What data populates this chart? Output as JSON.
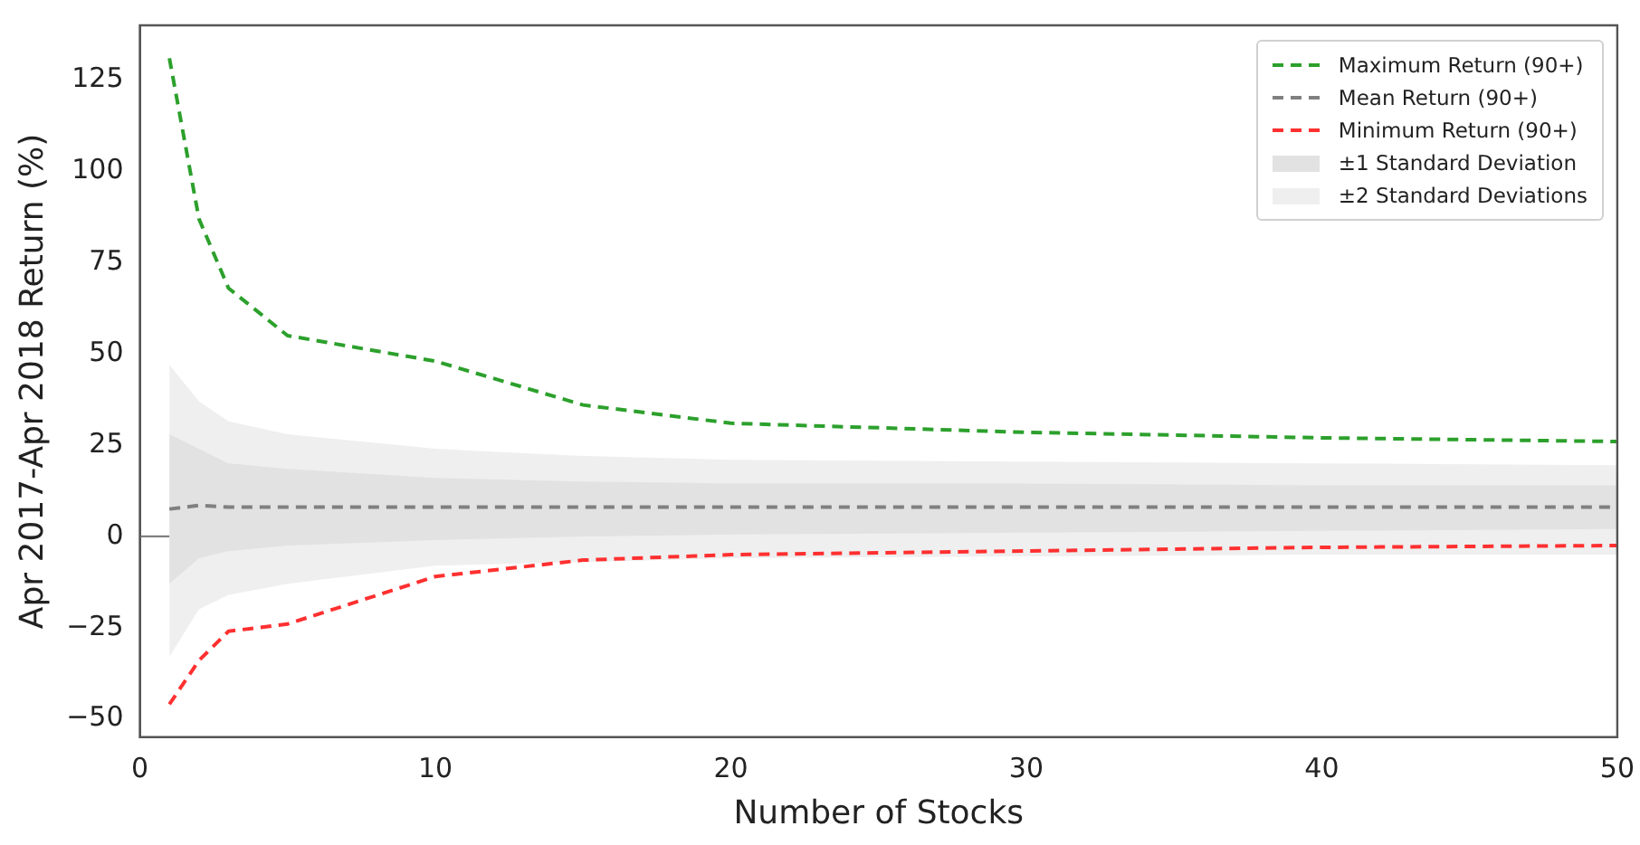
{
  "chart_data": {
    "type": "line",
    "xlabel": "Number of Stocks",
    "ylabel": "Apr 2017-Apr 2018 Return (%)",
    "x": [
      1,
      2,
      3,
      5,
      10,
      15,
      20,
      30,
      40,
      50
    ],
    "series": [
      {
        "name": "Maximum Return (90+)",
        "color": "#2ca02c",
        "values": [
          131,
          87,
          68,
          55,
          48,
          36,
          31,
          28.5,
          27,
          26
        ]
      },
      {
        "name": "Mean Return (90+)",
        "color": "#808080",
        "values": [
          7.5,
          8.5,
          8,
          8,
          8,
          8,
          8,
          8,
          8,
          8
        ]
      },
      {
        "name": "Minimum Return (90+)",
        "color": "#ff3030",
        "values": [
          -46,
          -34,
          -26,
          -24,
          -11,
          -6.5,
          -5,
          -4,
          -3,
          -2.5
        ]
      },
      {
        "name": "±1 Standard Deviation",
        "type": "area",
        "color": "#e2e2e2",
        "values": [
          null,
          null,
          null,
          null,
          null,
          null,
          null,
          null,
          null,
          null
        ],
        "lower": [
          -13,
          -6,
          -4,
          -2.5,
          -1,
          0,
          0.5,
          1,
          1.5,
          2
        ],
        "upper": [
          28,
          24,
          20,
          18.5,
          16,
          15,
          14.5,
          14.5,
          14,
          14
        ]
      },
      {
        "name": "±2 Standard Deviations",
        "type": "area",
        "color": "#efefef",
        "values": [
          null,
          null,
          null,
          null,
          null,
          null,
          null,
          null,
          null,
          null
        ],
        "lower": [
          -33,
          -20,
          -16,
          -13,
          -8,
          -7,
          -6,
          -5.5,
          -5,
          -5
        ],
        "upper": [
          47,
          37,
          31.5,
          28,
          24,
          22,
          21,
          20.5,
          20,
          19.5
        ]
      }
    ],
    "xlim": [
      0,
      50
    ],
    "xticks": [
      0,
      10,
      20,
      30,
      40,
      50
    ],
    "ylim": [
      -55,
      140
    ],
    "yticks": [
      -50,
      -25,
      0,
      25,
      50,
      75,
      100,
      125
    ],
    "ref_lines": [
      {
        "axis": "y",
        "value": 0,
        "color": "#808080"
      }
    ],
    "legend": "top right",
    "line_style": "dashed",
    "marker": "none",
    "grid": false
  }
}
